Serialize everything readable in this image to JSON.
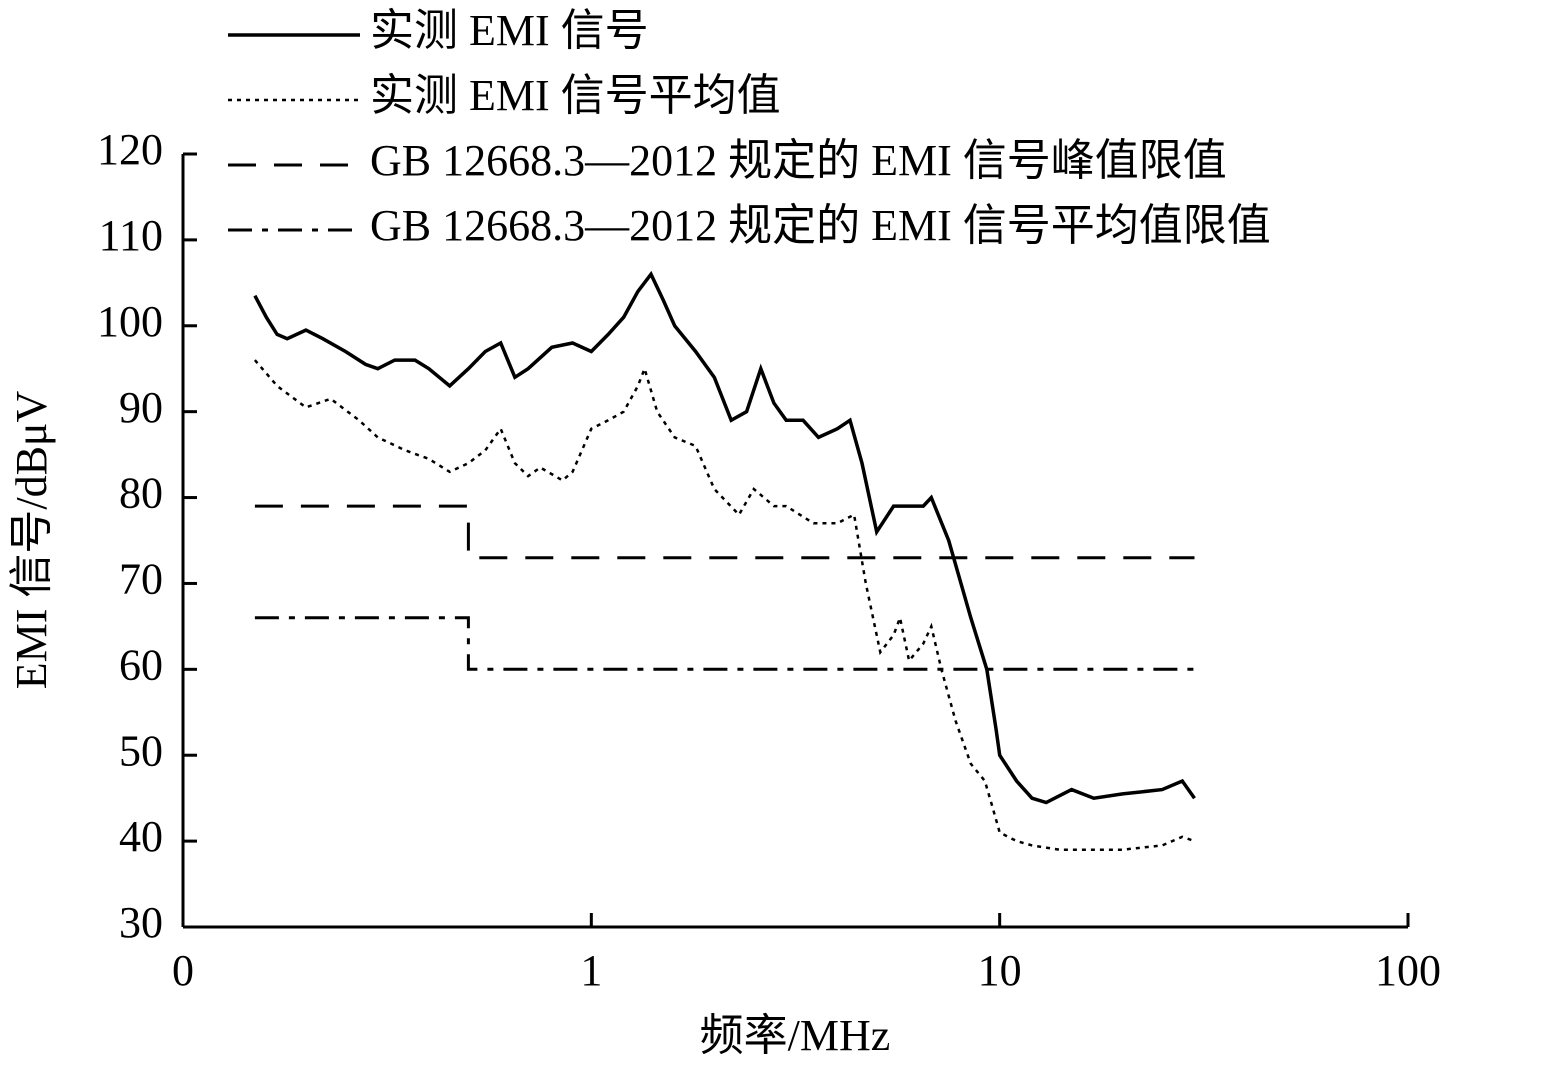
{
  "chart_data": {
    "type": "line",
    "xlabel": "频率/MHz",
    "ylabel": "EMI 信号/dBμV",
    "xscale": "log",
    "xlim": [
      0.1,
      100
    ],
    "xticks": [
      {
        "value": 0.1,
        "label": "0"
      },
      1,
      10,
      100
    ],
    "ylim": [
      30,
      120
    ],
    "yticks": [
      30,
      40,
      50,
      60,
      70,
      80,
      90,
      100,
      110,
      120
    ],
    "grid": false,
    "series": [
      {
        "name": "实测 EMI 信号",
        "color": "#000000",
        "x": [
          0.15,
          0.16,
          0.17,
          0.18,
          0.2,
          0.22,
          0.25,
          0.28,
          0.3,
          0.33,
          0.37,
          0.4,
          0.45,
          0.5,
          0.55,
          0.6,
          0.65,
          0.7,
          0.8,
          0.9,
          1.0,
          1.1,
          1.2,
          1.3,
          1.4,
          1.5,
          1.6,
          1.8,
          2.0,
          2.2,
          2.4,
          2.6,
          2.8,
          3.0,
          3.3,
          3.6,
          4.0,
          4.3,
          4.6,
          5.0,
          5.5,
          6.0,
          6.5,
          6.8,
          7.5,
          8.5,
          9.3,
          9.8,
          10,
          11,
          12,
          13,
          15,
          17,
          20,
          25,
          28,
          30
        ],
        "values": [
          103.5,
          101,
          99,
          98.5,
          99.5,
          98.5,
          97,
          95.5,
          95,
          96,
          96,
          95,
          93,
          95,
          97,
          98,
          94,
          95,
          97.5,
          98,
          97,
          99,
          101,
          104,
          106,
          103,
          100,
          97,
          94,
          89,
          90,
          95,
          91,
          89,
          89,
          87,
          88,
          89,
          84,
          76,
          79,
          79,
          79,
          80,
          75,
          66,
          60,
          53,
          50,
          47,
          45,
          44.5,
          46,
          45,
          45.5,
          46,
          47,
          45
        ]
      },
      {
        "name": "实测 EMI 信号平均值",
        "color": "#000000",
        "x": [
          0.15,
          0.17,
          0.2,
          0.23,
          0.27,
          0.3,
          0.35,
          0.4,
          0.45,
          0.5,
          0.55,
          0.6,
          0.65,
          0.7,
          0.75,
          0.85,
          0.9,
          1.0,
          1.1,
          1.2,
          1.3,
          1.35,
          1.45,
          1.6,
          1.8,
          2.0,
          2.3,
          2.5,
          2.8,
          3.0,
          3.5,
          4.0,
          4.4,
          4.7,
          5.1,
          5.5,
          5.7,
          6.0,
          6.5,
          6.8,
          7.2,
          7.8,
          8.5,
          9.2,
          9.6,
          10,
          11,
          12,
          14,
          17,
          20,
          25,
          28,
          30
        ],
        "values": [
          96,
          93,
          90.5,
          91.5,
          89,
          87,
          85.5,
          84.5,
          83,
          84,
          85.5,
          88,
          84,
          82.5,
          83.5,
          82,
          83,
          88,
          89,
          90,
          93,
          95,
          90,
          87,
          86,
          81,
          78,
          81,
          79,
          79,
          77,
          77,
          78,
          70,
          62,
          64,
          66,
          61,
          63,
          65,
          60,
          54,
          49,
          47,
          44,
          41,
          40,
          39.5,
          39,
          39,
          39,
          39.5,
          40.5,
          40
        ]
      },
      {
        "name": "GB 12668.3—2012 规定的 EMI 信号峰值限值",
        "color": "#000000",
        "x": [
          0.15,
          0.5,
          0.5,
          30
        ],
        "values": [
          79,
          79,
          73,
          73
        ]
      },
      {
        "name": "GB 12668.3—2012 规定的 EMI 信号平均值限值",
        "color": "#000000",
        "x": [
          0.15,
          0.5,
          0.5,
          30
        ],
        "values": [
          66,
          66,
          60,
          60
        ]
      }
    ]
  }
}
